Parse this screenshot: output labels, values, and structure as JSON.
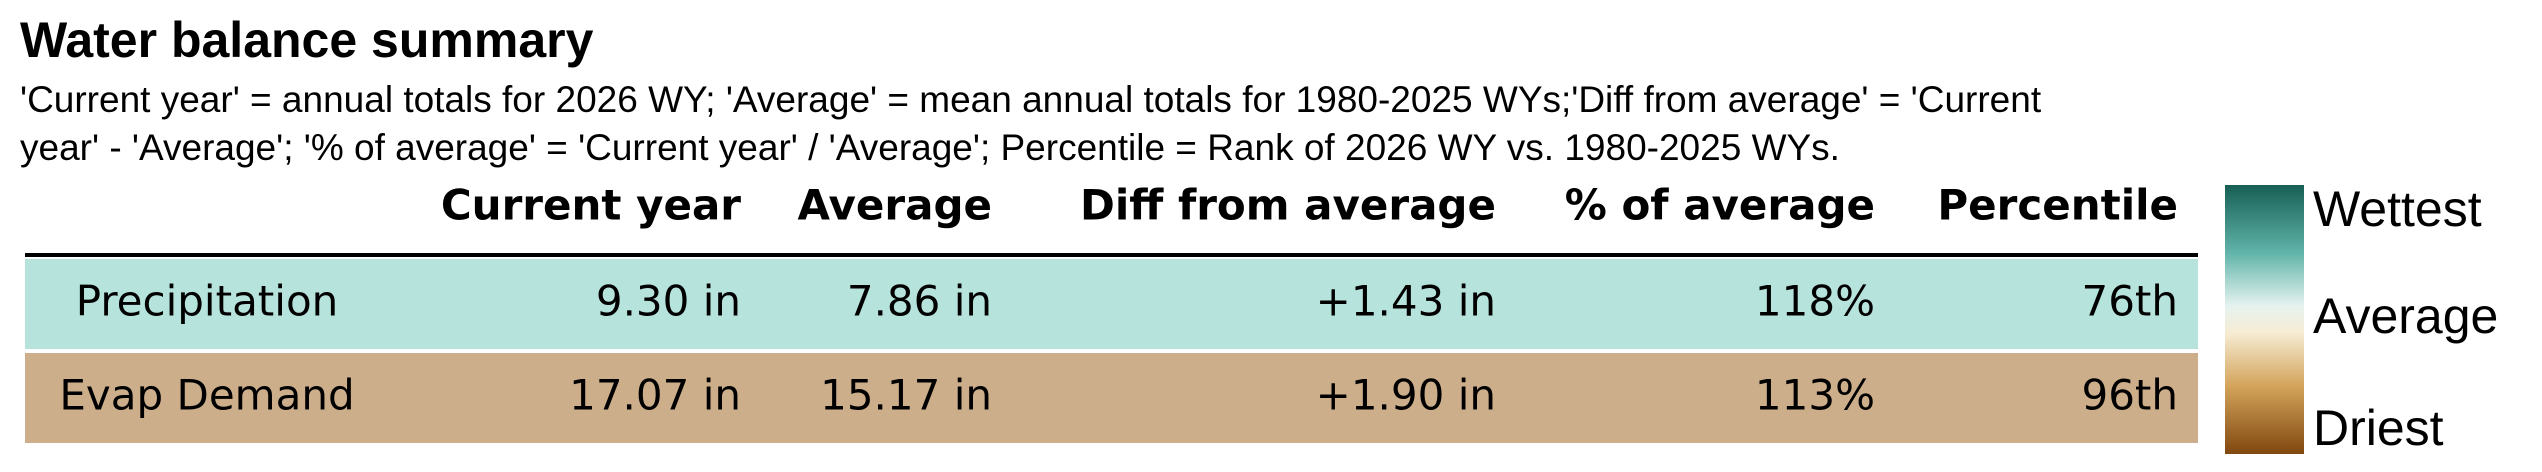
{
  "header": {
    "title": "Water balance summary",
    "subtitle": [
      "'Current year' = annual totals for 2026 WY; 'Average' = mean annual totals for 1980-2025 WYs;'Diff from average' = 'Current",
      "year' - 'Average'; '% of average' = 'Current year' / 'Average'; Percentile = Rank of 2026 WY vs. 1980-2025 WYs."
    ]
  },
  "table": {
    "columns": [
      "Current year",
      "Average",
      "Diff from average",
      "% of average",
      "Percentile"
    ],
    "rows": [
      {
        "label": "Precipitation",
        "cells": [
          "9.30 in",
          "7.86 in",
          "+1.43 in",
          "118%",
          "76th"
        ],
        "color": "#b7e3dd"
      },
      {
        "label": "Evap Demand",
        "cells": [
          "17.07 in",
          "15.17 in",
          "+1.90 in",
          "113%",
          "96th"
        ],
        "color": "#cdae8b"
      }
    ]
  },
  "legend": {
    "labels": [
      "Wettest",
      "Average",
      "Driest"
    ]
  }
}
